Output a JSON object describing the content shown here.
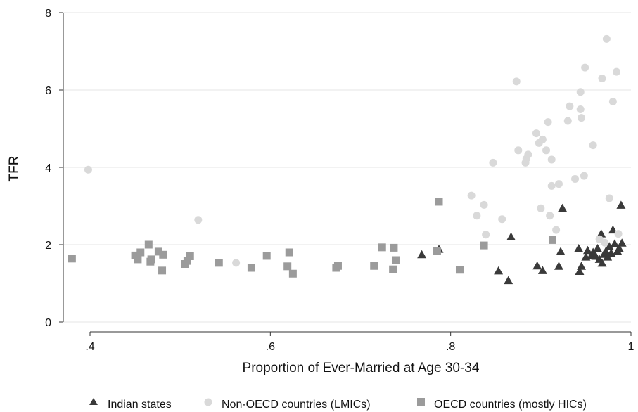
{
  "chart_data": {
    "type": "scatter",
    "title": "",
    "xlabel": "Proportion of Ever-Married at Age 30-34",
    "ylabel": "TFR",
    "xlim": [
      0.38,
      1.0
    ],
    "ylim": [
      0,
      8
    ],
    "xticks": [
      ".4",
      ".6",
      ".8",
      "1"
    ],
    "xtick_values": [
      0.4,
      0.6,
      0.8,
      1.0
    ],
    "yticks": [
      "0",
      "2",
      "4",
      "6",
      "8"
    ],
    "ytick_values": [
      0,
      2,
      4,
      6,
      8
    ],
    "grid": "horizontal",
    "legend_position": "bottom",
    "series": [
      {
        "name": "Indian states",
        "marker": "triangle",
        "color": "#3a3a3a",
        "points": [
          [
            0.768,
            1.74
          ],
          [
            0.787,
            1.88
          ],
          [
            0.853,
            1.32
          ],
          [
            0.864,
            1.07
          ],
          [
            0.867,
            2.2
          ],
          [
            0.896,
            1.45
          ],
          [
            0.902,
            1.33
          ],
          [
            0.92,
            1.44
          ],
          [
            0.922,
            1.82
          ],
          [
            0.924,
            2.94
          ],
          [
            0.942,
            1.9
          ],
          [
            0.943,
            1.31
          ],
          [
            0.945,
            1.44
          ],
          [
            0.95,
            1.68
          ],
          [
            0.952,
            1.85
          ],
          [
            0.956,
            1.72
          ],
          [
            0.958,
            1.8
          ],
          [
            0.961,
            1.7
          ],
          [
            0.963,
            1.9
          ],
          [
            0.965,
            1.62
          ],
          [
            0.967,
            2.28
          ],
          [
            0.968,
            1.52
          ],
          [
            0.97,
            1.75
          ],
          [
            0.972,
            1.82
          ],
          [
            0.974,
            1.68
          ],
          [
            0.976,
            1.95
          ],
          [
            0.978,
            1.78
          ],
          [
            0.98,
            2.38
          ],
          [
            0.982,
            2.02
          ],
          [
            0.985,
            1.83
          ],
          [
            0.987,
            1.9
          ],
          [
            0.989,
            3.02
          ],
          [
            0.99,
            2.04
          ]
        ]
      },
      {
        "name": "Non-OECD countries (LMICs)",
        "marker": "circle",
        "color": "#d9d9d9",
        "points": [
          [
            0.398,
            3.94
          ],
          [
            0.52,
            2.64
          ],
          [
            0.562,
            1.53
          ],
          [
            0.823,
            3.27
          ],
          [
            0.829,
            2.75
          ],
          [
            0.837,
            3.03
          ],
          [
            0.839,
            2.26
          ],
          [
            0.847,
            4.12
          ],
          [
            0.857,
            2.66
          ],
          [
            0.873,
            6.22
          ],
          [
            0.875,
            4.44
          ],
          [
            0.883,
            4.12
          ],
          [
            0.884,
            4.22
          ],
          [
            0.886,
            4.33
          ],
          [
            0.895,
            4.88
          ],
          [
            0.898,
            4.63
          ],
          [
            0.9,
            2.94
          ],
          [
            0.902,
            4.72
          ],
          [
            0.906,
            4.44
          ],
          [
            0.908,
            5.17
          ],
          [
            0.91,
            2.75
          ],
          [
            0.912,
            3.52
          ],
          [
            0.912,
            4.2
          ],
          [
            0.917,
            2.38
          ],
          [
            0.92,
            3.57
          ],
          [
            0.93,
            5.2
          ],
          [
            0.932,
            5.58
          ],
          [
            0.938,
            3.7
          ],
          [
            0.944,
            5.5
          ],
          [
            0.944,
            5.95
          ],
          [
            0.945,
            5.28
          ],
          [
            0.948,
            3.78
          ],
          [
            0.949,
            6.58
          ],
          [
            0.958,
            4.57
          ],
          [
            0.965,
            2.14
          ],
          [
            0.968,
            6.3
          ],
          [
            0.971,
            2.05
          ],
          [
            0.973,
            7.32
          ],
          [
            0.976,
            3.2
          ],
          [
            0.98,
            5.7
          ],
          [
            0.984,
            6.47
          ],
          [
            0.986,
            2.28
          ]
        ]
      },
      {
        "name": "OECD countries (mostly HICs)",
        "marker": "square",
        "color": "#9b9b9b",
        "points": [
          [
            0.38,
            1.64
          ],
          [
            0.45,
            1.72
          ],
          [
            0.453,
            1.62
          ],
          [
            0.456,
            1.8
          ],
          [
            0.465,
            2.0
          ],
          [
            0.467,
            1.56
          ],
          [
            0.468,
            1.62
          ],
          [
            0.476,
            1.82
          ],
          [
            0.48,
            1.33
          ],
          [
            0.481,
            1.74
          ],
          [
            0.505,
            1.5
          ],
          [
            0.508,
            1.58
          ],
          [
            0.511,
            1.7
          ],
          [
            0.543,
            1.53
          ],
          [
            0.579,
            1.4
          ],
          [
            0.596,
            1.71
          ],
          [
            0.619,
            1.44
          ],
          [
            0.621,
            1.8
          ],
          [
            0.625,
            1.25
          ],
          [
            0.673,
            1.4
          ],
          [
            0.675,
            1.45
          ],
          [
            0.715,
            1.45
          ],
          [
            0.724,
            1.93
          ],
          [
            0.736,
            1.36
          ],
          [
            0.737,
            1.92
          ],
          [
            0.739,
            1.6
          ],
          [
            0.785,
            1.83
          ],
          [
            0.787,
            3.11
          ],
          [
            0.81,
            1.35
          ],
          [
            0.837,
            1.98
          ],
          [
            0.913,
            2.12
          ]
        ]
      }
    ]
  }
}
